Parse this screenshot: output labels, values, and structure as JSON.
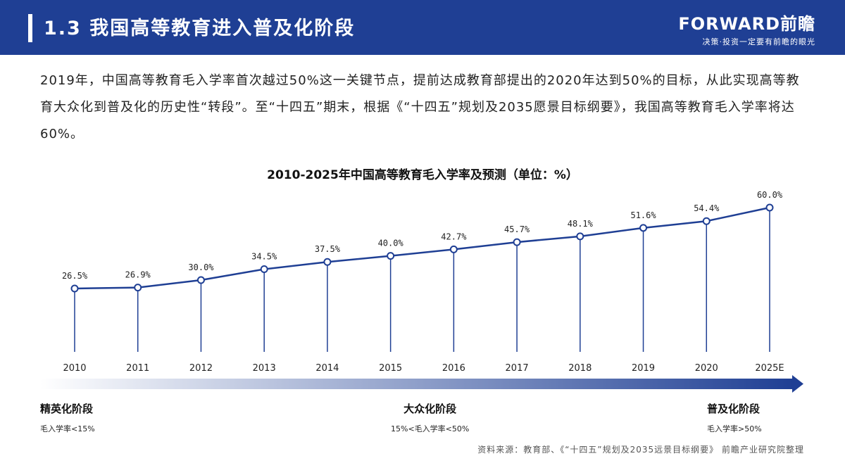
{
  "header": {
    "title": "1.3 我国高等教育进入普及化阶段",
    "brand_name": "FORWARD前瞻",
    "brand_slogan": "决策·投资一定要有前瞻的眼光"
  },
  "intro": "2019年，中国高等教育毛入学率首次越过50%这一关键节点，提前达成教育部提出的2020年达到50%的目标，从此实现高等教育大众化到普及化的历史性“转段”。至“十四五”期末，根据《“十四五”规划及2035愿景目标纲要》，我国高等教育毛入学率将达60%。",
  "chart_data": {
    "type": "line",
    "title": "2010-2025年中国高等教育毛入学率及预测（单位：%）",
    "categories": [
      "2010",
      "2011",
      "2012",
      "2013",
      "2014",
      "2015",
      "2016",
      "2017",
      "2018",
      "2019",
      "2020",
      "2025E"
    ],
    "values": [
      26.5,
      26.9,
      30.0,
      34.5,
      37.5,
      40.0,
      42.7,
      45.7,
      48.1,
      51.6,
      54.4,
      60.0
    ],
    "value_labels": [
      "26.5%",
      "26.9%",
      "30.0%",
      "34.5%",
      "37.5%",
      "40.0%",
      "42.7%",
      "45.7%",
      "48.1%",
      "51.6%",
      "54.4%",
      "60.0%"
    ],
    "ylim": [
      0,
      65
    ],
    "grid": false,
    "colors": {
      "line": "#1f3f94",
      "marker_fill": "#ffffff"
    }
  },
  "stages": [
    {
      "name": "精英化阶段",
      "rate": "毛入学率<15%"
    },
    {
      "name": "大众化阶段",
      "rate": "15%<毛入学率<50%"
    },
    {
      "name": "普及化阶段",
      "rate": "毛入学率>50%"
    }
  ],
  "source": "资料来源：教育部、《“十四五”规划及2035远景目标纲要》 前瞻产业研究院整理",
  "colors": {
    "header_bg": "#1f3f94",
    "arrow_start": "#ffffff",
    "arrow_end": "#1f3f94"
  }
}
